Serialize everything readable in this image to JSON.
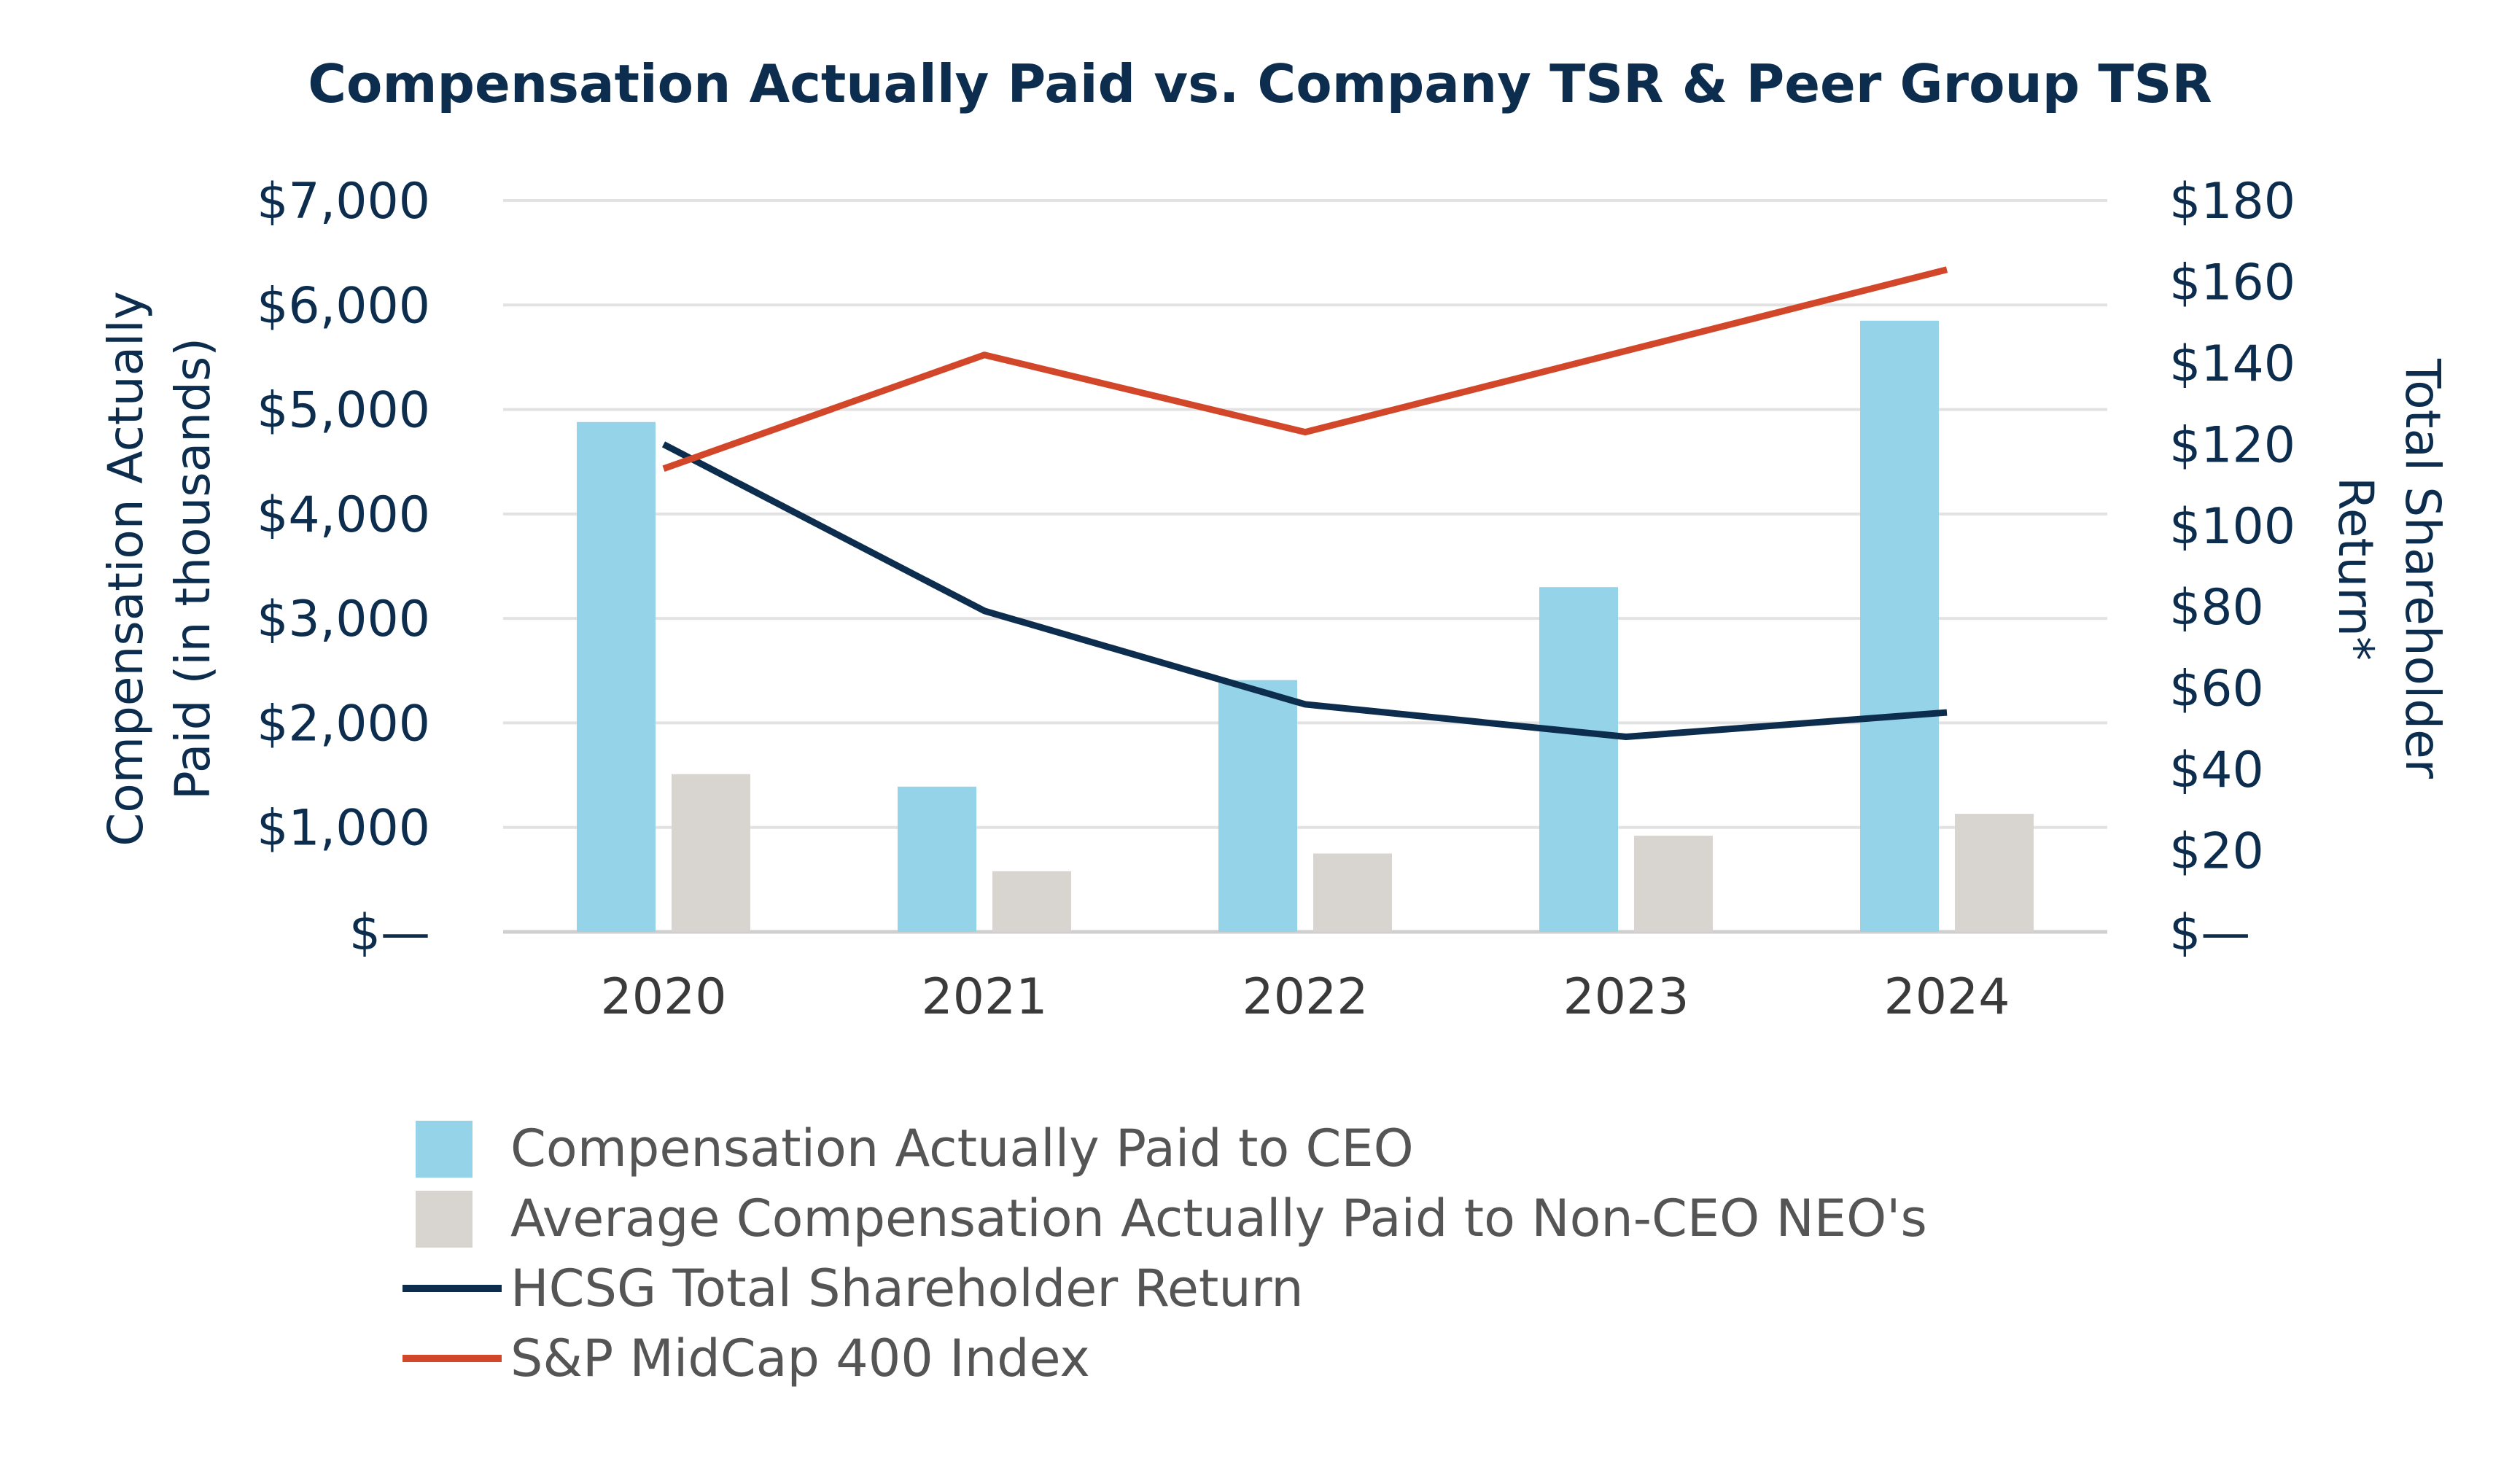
{
  "chart_data": {
    "type": "bar+line",
    "title": "Compensation Actually Paid vs. Company TSR & Peer Group TSR",
    "categories": [
      "2020",
      "2021",
      "2022",
      "2023",
      "2024"
    ],
    "y_left": {
      "label_lines": [
        "Compensation Actually",
        "Paid (in thousands)"
      ],
      "ylim": [
        0,
        7000
      ],
      "ticks": [
        0,
        1000,
        2000,
        3000,
        4000,
        5000,
        6000,
        7000
      ],
      "tick_labels": [
        "$—",
        "$1,000",
        "$2,000",
        "$3,000",
        "$4,000",
        "$5,000",
        "$6,000",
        "$7,000"
      ]
    },
    "y_right": {
      "label_lines": [
        "Total Shareholder",
        "Return*"
      ],
      "ylim": [
        0,
        180
      ],
      "ticks": [
        0,
        20,
        40,
        60,
        80,
        100,
        120,
        140,
        160,
        180
      ],
      "tick_labels": [
        "$—",
        "$20",
        "$40",
        "$60",
        "$80",
        "$100",
        "$120",
        "$140",
        "$160",
        "$180"
      ]
    },
    "bar_series": [
      {
        "name": "Compensation Actually Paid to CEO",
        "color": "#95d3e8",
        "values": [
          4880,
          1390,
          2410,
          3300,
          5850
        ]
      },
      {
        "name": "Average Compensation Actually Paid to Non-CEO NEO's",
        "color": "#d8d4cf",
        "values": [
          1510,
          580,
          750,
          920,
          1130
        ]
      }
    ],
    "line_series": [
      {
        "name": "HCSG Total Shareholder Return",
        "color": "#0c2d4e",
        "values": [
          120,
          79,
          56,
          48,
          54
        ]
      },
      {
        "name": "S&P MidCap 400 Index",
        "color": "#d2472a",
        "values": [
          114,
          142,
          123,
          143,
          163
        ]
      }
    ],
    "legend": [
      {
        "label": "Compensation Actually Paid to CEO",
        "kind": "bar",
        "color": "#95d3e8"
      },
      {
        "label": "Average Compensation Actually Paid to Non-CEO NEO's",
        "kind": "bar",
        "color": "#d8d4cf"
      },
      {
        "label": "HCSG Total Shareholder Return",
        "kind": "line",
        "color": "#0c2d4e"
      },
      {
        "label": "S&P MidCap 400 Index",
        "kind": "line",
        "color": "#d2472a"
      }
    ],
    "grid": true,
    "legend_position": "bottom"
  }
}
